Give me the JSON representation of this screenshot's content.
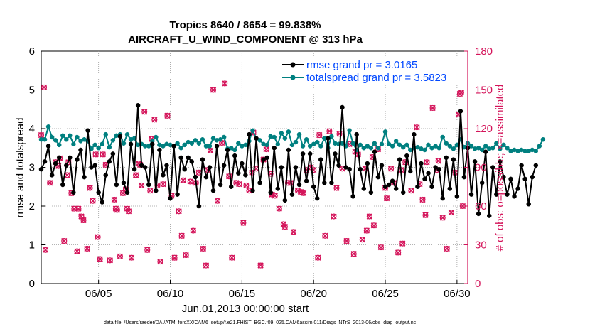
{
  "chart_data": {
    "type": "line",
    "title_line1": "Tropics 8640 / 8654 = 99.838%",
    "title_line2": "AIRCRAFT_U_WIND_COMPONENT @ 313 hPa",
    "xlabel": "Jun.01,2013 00:00:00 start",
    "ylabel_left": "rmse and totalspread",
    "ylabel_right": "# of obs: o=possible; ×=assimilated",
    "x_ticks": [
      "06/05",
      "06/10",
      "06/15",
      "06/20",
      "06/25",
      "06/30"
    ],
    "x_tick_values": [
      5,
      10,
      15,
      20,
      25,
      30
    ],
    "x_range": [
      1,
      30.75
    ],
    "y_left_ticks": [
      "0",
      "1",
      "2",
      "3",
      "4",
      "5",
      "6"
    ],
    "y_left_range": [
      0,
      6
    ],
    "y_right_ticks": [
      "0",
      "30",
      "60",
      "90",
      "120",
      "150",
      "180"
    ],
    "y_right_range": [
      0,
      180
    ],
    "footer": "data file: /Users/raeder/DAI/ATM_forcXX/CAM6_setup/f.e21.FHIST_BGC.f09_025.CAM6assim.011/Diags_NTrS_2013-06/obs_diag_output.nc",
    "colors": {
      "rmse": "#000000",
      "spread": "#008080",
      "obs": "#d4145a",
      "legend_text": "#0047ff"
    },
    "x_start": 1.0,
    "x_step": 0.25,
    "series": [
      {
        "name": "rmse",
        "legend": "rmse grand pr = 3.0165",
        "values": [
          2.95,
          3.15,
          3.55,
          2.8,
          3.1,
          3.25,
          2.55,
          3.05,
          3.25,
          2.35,
          3.2,
          3.45,
          2.75,
          3.95,
          3.0,
          3.05,
          2.35,
          2.1,
          2.8,
          3.15,
          3.35,
          2.55,
          3.8,
          2.6,
          2.35,
          3.6,
          2.95,
          4.6,
          3.05,
          3.0,
          2.55,
          3.6,
          2.4,
          3.45,
          2.8,
          3.05,
          2.2,
          3.55,
          2.3,
          3.25,
          2.95,
          3.25,
          3.15,
          2.75,
          2.0,
          3.2,
          2.75,
          3.0,
          2.4,
          3.55,
          2.55,
          3.05,
          3.45,
          2.5,
          3.3,
          2.85,
          3.1,
          2.8,
          3.85,
          2.4,
          3.75,
          2.6,
          3.2,
          3.25,
          2.35,
          3.5,
          2.45,
          3.0,
          2.15,
          3.45,
          2.3,
          3.0,
          2.55,
          3.35,
          2.65,
          3.35,
          2.5,
          2.2,
          3.2,
          2.6,
          3.75,
          2.6,
          3.35,
          3.05,
          4.55,
          3.0,
          2.95,
          2.25,
          3.85,
          2.95,
          2.45,
          3.1,
          2.35,
          3.4,
          2.75,
          3.05,
          2.5,
          2.55,
          2.65,
          2.45,
          3.2,
          2.35,
          3.3,
          2.9,
          3.85,
          2.5,
          3.1,
          2.7,
          2.85,
          2.5,
          3.0,
          2.95,
          2.2,
          3.25,
          2.45,
          3.2,
          2.25,
          4.45,
          2.75,
          3.5,
          2.3,
          3.15,
          1.8,
          2.6,
          3.4,
          1.75,
          3.0,
          2.3,
          3.15,
          2.75,
          2.3,
          2.7,
          2.25,
          2.45,
          3.05,
          2.7,
          2.05,
          2.75,
          3.05
        ]
      },
      {
        "name": "totalspread",
        "legend": "totalspread grand pr = 3.5823",
        "values": [
          3.72,
          3.72,
          4.05,
          3.78,
          3.7,
          3.58,
          3.82,
          3.72,
          3.82,
          3.6,
          3.78,
          3.68,
          3.72,
          3.68,
          3.48,
          3.58,
          3.5,
          3.6,
          3.85,
          3.52,
          3.7,
          3.82,
          3.85,
          3.62,
          3.85,
          3.72,
          3.75,
          3.58,
          3.6,
          3.55,
          3.55,
          3.68,
          3.78,
          3.58,
          3.55,
          3.6,
          3.58,
          3.55,
          3.62,
          3.5,
          3.58,
          3.65,
          3.62,
          3.7,
          3.62,
          3.72,
          3.55,
          3.55,
          3.75,
          3.7,
          3.72,
          3.78,
          3.48,
          3.5,
          3.45,
          3.62,
          3.55,
          3.58,
          3.68,
          3.95,
          3.75,
          3.7,
          3.6,
          3.58,
          3.8,
          3.78,
          3.6,
          3.88,
          3.75,
          3.92,
          3.58,
          3.65,
          3.85,
          3.55,
          3.72,
          3.55,
          3.6,
          3.65,
          3.55,
          3.75,
          3.5,
          3.8,
          3.62,
          3.6,
          3.62,
          3.55,
          3.95,
          3.62,
          3.45,
          3.58,
          3.5,
          3.55,
          3.5,
          3.62,
          3.5,
          3.6,
          3.92,
          3.6,
          3.55,
          3.68,
          3.58,
          3.52,
          3.58,
          3.45,
          3.5,
          3.52,
          3.48,
          3.45,
          3.58,
          3.5,
          3.55,
          3.5,
          3.78,
          3.62,
          3.55,
          3.48,
          3.58,
          3.72,
          3.52,
          3.62,
          3.55,
          3.48,
          3.5,
          3.45,
          3.55,
          3.48,
          3.5,
          3.62,
          3.48,
          3.58,
          3.5,
          3.42,
          3.45,
          3.42,
          3.45,
          3.42,
          3.42,
          3.45,
          3.42,
          3.55,
          3.72
        ]
      }
    ],
    "obs_points": [
      [
        1.0,
        115
      ],
      [
        1.2,
        152
      ],
      [
        1.3,
        26
      ],
      [
        1.6,
        78
      ],
      [
        2.0,
        94
      ],
      [
        2.2,
        91
      ],
      [
        2.3,
        97
      ],
      [
        2.6,
        33
      ],
      [
        2.8,
        84
      ],
      [
        2.9,
        94
      ],
      [
        3.1,
        70
      ],
      [
        3.3,
        58
      ],
      [
        3.5,
        25
      ],
      [
        3.6,
        58
      ],
      [
        3.8,
        52
      ],
      [
        3.95,
        49
      ],
      [
        4.2,
        27
      ],
      [
        4.4,
        74
      ],
      [
        4.6,
        64
      ],
      [
        4.8,
        100
      ],
      [
        4.95,
        36
      ],
      [
        5.1,
        19
      ],
      [
        5.3,
        100
      ],
      [
        5.5,
        92
      ],
      [
        5.8,
        18
      ],
      [
        6.1,
        65
      ],
      [
        6.2,
        58
      ],
      [
        6.3,
        57
      ],
      [
        6.5,
        21
      ],
      [
        6.7,
        70
      ],
      [
        6.9,
        73
      ],
      [
        7.0,
        58
      ],
      [
        7.1,
        56
      ],
      [
        7.3,
        20
      ],
      [
        7.6,
        84
      ],
      [
        7.8,
        93
      ],
      [
        7.9,
        92
      ],
      [
        8.0,
        76
      ],
      [
        8.2,
        133
      ],
      [
        8.4,
        26
      ],
      [
        8.6,
        72
      ],
      [
        8.7,
        112
      ],
      [
        8.9,
        127
      ],
      [
        9.1,
        76
      ],
      [
        9.3,
        17
      ],
      [
        9.5,
        77
      ],
      [
        9.8,
        130
      ],
      [
        10.1,
        68
      ],
      [
        10.3,
        20
      ],
      [
        10.6,
        56
      ],
      [
        10.8,
        37
      ],
      [
        10.9,
        80
      ],
      [
        11.1,
        22
      ],
      [
        11.4,
        79
      ],
      [
        11.6,
        41
      ],
      [
        11.8,
        78
      ],
      [
        12.0,
        86
      ],
      [
        12.3,
        27
      ],
      [
        12.5,
        14
      ],
      [
        12.6,
        88
      ],
      [
        12.8,
        103
      ],
      [
        13.0,
        150
      ],
      [
        13.3,
        64
      ],
      [
        13.6,
        109
      ],
      [
        13.8,
        155
      ],
      [
        14.1,
        83
      ],
      [
        14.3,
        20
      ],
      [
        14.6,
        78
      ],
      [
        14.8,
        77
      ],
      [
        15.1,
        47
      ],
      [
        15.3,
        76
      ],
      [
        15.5,
        72
      ],
      [
        15.7,
        86
      ],
      [
        15.8,
        117
      ],
      [
        16.0,
        89
      ],
      [
        16.3,
        14
      ],
      [
        16.5,
        96
      ],
      [
        16.7,
        104
      ],
      [
        17.0,
        85
      ],
      [
        17.1,
        69
      ],
      [
        17.3,
        68
      ],
      [
        17.6,
        58
      ],
      [
        17.9,
        46
      ],
      [
        18.0,
        44
      ],
      [
        18.2,
        78
      ],
      [
        18.4,
        78
      ],
      [
        18.6,
        40
      ],
      [
        18.9,
        72
      ],
      [
        19.1,
        71
      ],
      [
        19.3,
        70
      ],
      [
        19.5,
        88
      ],
      [
        19.8,
        90
      ],
      [
        20.0,
        88
      ],
      [
        20.3,
        20
      ],
      [
        20.4,
        115
      ],
      [
        20.8,
        37
      ],
      [
        21.1,
        118
      ],
      [
        21.4,
        52
      ],
      [
        21.6,
        74
      ],
      [
        21.8,
        116
      ],
      [
        22.0,
        89
      ],
      [
        22.3,
        33
      ],
      [
        22.5,
        108
      ],
      [
        22.8,
        23
      ],
      [
        22.9,
        102
      ],
      [
        23.1,
        100
      ],
      [
        23.4,
        34
      ],
      [
        23.6,
        89
      ],
      [
        23.7,
        41
      ],
      [
        23.9,
        52
      ],
      [
        24.1,
        98
      ],
      [
        24.2,
        45
      ],
      [
        24.5,
        104
      ],
      [
        24.7,
        28
      ],
      [
        25.0,
        74
      ],
      [
        25.1,
        66
      ],
      [
        25.4,
        89
      ],
      [
        25.6,
        78
      ],
      [
        25.9,
        24
      ],
      [
        26.1,
        88
      ],
      [
        26.2,
        31
      ],
      [
        26.4,
        94
      ],
      [
        26.8,
        72
      ],
      [
        27.2,
        121
      ],
      [
        27.4,
        77
      ],
      [
        27.6,
        65
      ],
      [
        27.8,
        53
      ],
      [
        27.9,
        94
      ],
      [
        28.3,
        136
      ],
      [
        28.6,
        88
      ],
      [
        28.7,
        95
      ],
      [
        29.0,
        51
      ],
      [
        29.3,
        27
      ],
      [
        29.6,
        55
      ],
      [
        29.9,
        86
      ],
      [
        30.1,
        131
      ],
      [
        30.2,
        147
      ],
      [
        30.3,
        148
      ],
      [
        30.4,
        60
      ]
    ]
  }
}
